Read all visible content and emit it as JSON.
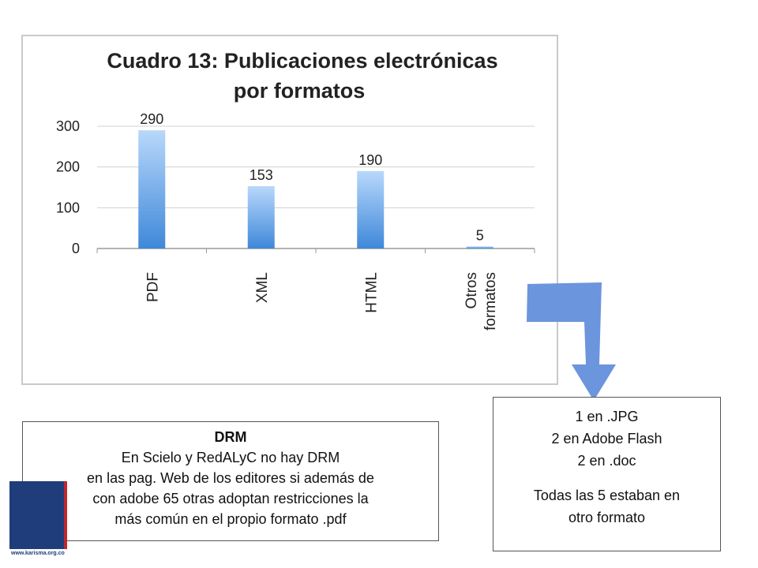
{
  "chart_data": {
    "type": "bar",
    "title_lines": [
      "Cuadro 13: Publicaciones electrónicas",
      "por formatos"
    ],
    "categories": [
      [
        "PDF"
      ],
      [
        "XML"
      ],
      [
        "HTML"
      ],
      [
        "Otros",
        "formatos"
      ]
    ],
    "values": [
      290,
      153,
      190,
      5
    ],
    "data_labels": [
      "290",
      "153",
      "190",
      "5"
    ],
    "yticks": [
      0,
      100,
      200,
      300
    ],
    "ylim": [
      0,
      300
    ],
    "grid": true,
    "bar_color_top": "#b9d8fb",
    "bar_color_bottom": "#3e88d9"
  },
  "notes": {
    "drm": {
      "title": "DRM",
      "lines": [
        "En Scielo y RedALyC no hay DRM",
        "en las pag. Web de los editores si además de",
        "con adobe 65 otras adoptan restricciones la",
        "más común en el propio formato .pdf"
      ]
    },
    "formats": {
      "lines_top": [
        "1 en .JPG",
        "2 en Adobe Flash",
        "2 en .doc"
      ],
      "lines_bottom": [
        "Todas las 5 estaban en",
        "otro formato"
      ]
    }
  },
  "arrow": {
    "color": "#6b95dc"
  },
  "logo": {
    "url_text": "www.karisma.org.co"
  }
}
